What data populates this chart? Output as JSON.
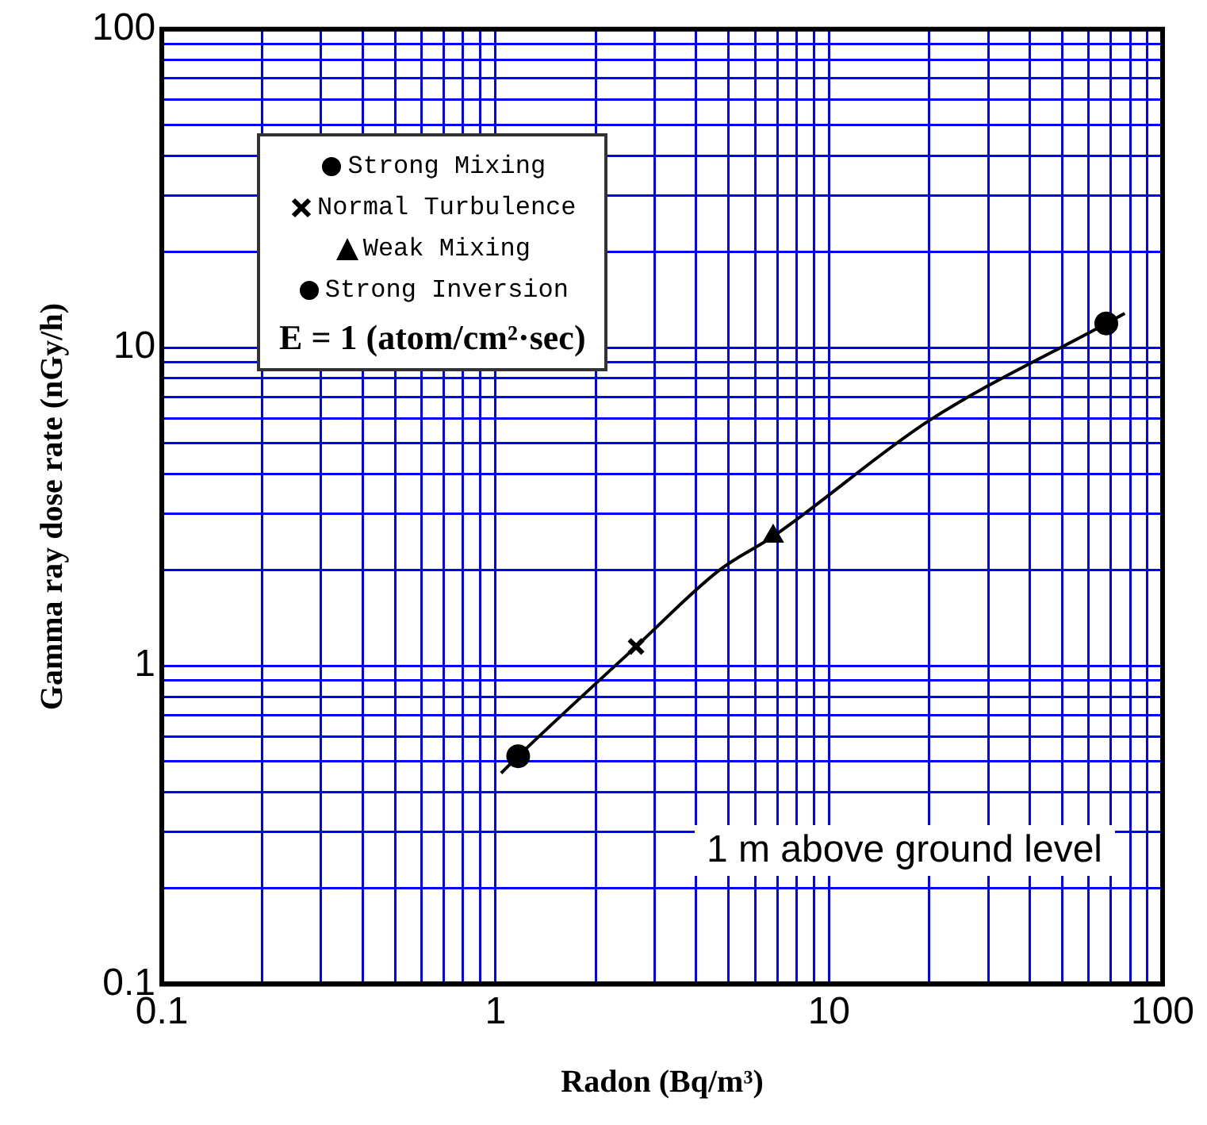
{
  "chart_data": {
    "type": "line",
    "xlabel": "Radon (Bq/m³)",
    "ylabel": "Gamma ray dose rate (nGy/h)",
    "log": "xy",
    "grid": true,
    "legend": "top left",
    "xlim": [
      0.1,
      100
    ],
    "ylim": [
      0.1,
      100
    ],
    "xticks": [
      0.1,
      {
        "value": 0.2,
        "label": null
      },
      {
        "value": 0.3,
        "label": null
      },
      {
        "value": 0.4,
        "label": null
      },
      {
        "value": 0.5,
        "label": null
      },
      {
        "value": 0.6,
        "label": null
      },
      {
        "value": 0.7,
        "label": null
      },
      {
        "value": 0.8,
        "label": null
      },
      {
        "value": 0.9,
        "label": null
      },
      1,
      {
        "value": 2,
        "label": null
      },
      {
        "value": 3,
        "label": null
      },
      {
        "value": 4,
        "label": null
      },
      {
        "value": 5,
        "label": null
      },
      {
        "value": 6,
        "label": null
      },
      {
        "value": 7,
        "label": null
      },
      {
        "value": 8,
        "label": null
      },
      {
        "value": 9,
        "label": null
      },
      10,
      {
        "value": 20,
        "label": null
      },
      {
        "value": 30,
        "label": null
      },
      {
        "value": 40,
        "label": null
      },
      {
        "value": 50,
        "label": null
      },
      {
        "value": 60,
        "label": null
      },
      {
        "value": 70,
        "label": null
      },
      {
        "value": 80,
        "label": null
      },
      {
        "value": 90,
        "label": null
      },
      100
    ],
    "yticks": [
      0.1,
      {
        "value": 0.2,
        "label": null
      },
      {
        "value": 0.3,
        "label": null
      },
      {
        "value": 0.4,
        "label": null
      },
      {
        "value": 0.5,
        "label": null
      },
      {
        "value": 0.6,
        "label": null
      },
      {
        "value": 0.7,
        "label": null
      },
      {
        "value": 0.8,
        "label": null
      },
      {
        "value": 0.9,
        "label": null
      },
      1,
      {
        "value": 2,
        "label": null
      },
      {
        "value": 3,
        "label": null
      },
      {
        "value": 4,
        "label": null
      },
      {
        "value": 5,
        "label": null
      },
      {
        "value": 6,
        "label": null
      },
      {
        "value": 7,
        "label": null
      },
      {
        "value": 8,
        "label": null
      },
      {
        "value": 9,
        "label": null
      },
      10,
      {
        "value": 20,
        "label": null
      },
      {
        "value": 30,
        "label": null
      },
      {
        "value": 40,
        "label": null
      },
      {
        "value": 50,
        "label": null
      },
      {
        "value": 60,
        "label": null
      },
      {
        "value": 70,
        "label": null
      },
      {
        "value": 80,
        "label": null
      },
      {
        "value": 90,
        "label": null
      },
      100
    ],
    "series": [
      {
        "color": "#000000",
        "marker": "none",
        "x": [
          1.04,
          1.17,
          2.64,
          4.7,
          6.8,
          20,
          67.8,
          77
        ],
        "values": [
          0.46,
          0.52,
          1.15,
          2.0,
          2.55,
          5.9,
          11.9,
          12.8
        ]
      },
      {
        "type": "scatter",
        "name": "Strong Mixing",
        "color": "#000000",
        "marker": "circle",
        "x": [
          1.17
        ],
        "values": [
          0.52
        ]
      },
      {
        "type": "scatter",
        "name": "Normal Turbulence",
        "color": "#000000",
        "marker": "cross",
        "x": [
          2.64
        ],
        "values": [
          1.15
        ]
      },
      {
        "type": "scatter",
        "name": "Weak Mixing",
        "color": "#000000",
        "marker": "triangle",
        "x": [
          6.8
        ],
        "values": [
          2.55
        ]
      },
      {
        "type": "scatter",
        "name": "Strong Inversion",
        "color": "#000000",
        "marker": "circle",
        "x": [
          67.8
        ],
        "values": [
          11.9
        ]
      }
    ],
    "annotations": [
      "E = 1 (atom/cm²·sec)",
      "1 m above ground level"
    ]
  }
}
